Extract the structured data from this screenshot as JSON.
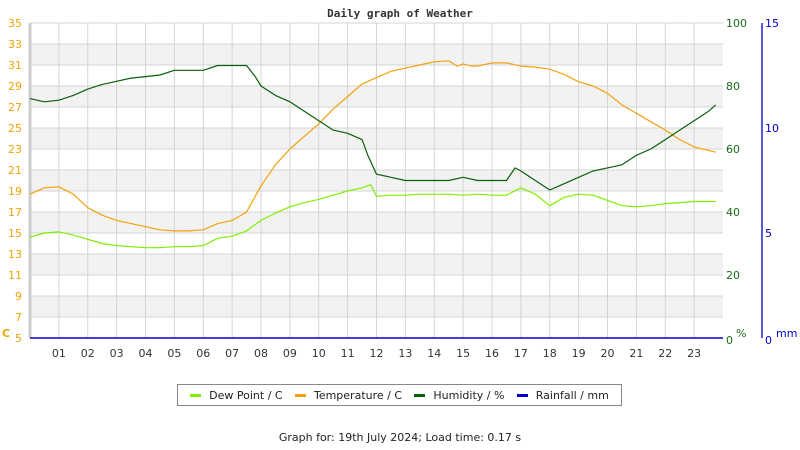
{
  "chart_data": {
    "type": "line",
    "title": "Daily graph of Weather",
    "xlabel": "",
    "x_ticks": [
      "01",
      "02",
      "03",
      "04",
      "05",
      "06",
      "07",
      "08",
      "09",
      "10",
      "11",
      "12",
      "13",
      "14",
      "15",
      "16",
      "17",
      "18",
      "19",
      "20",
      "21",
      "22",
      "23"
    ],
    "x_range": [
      0,
      24
    ],
    "axes": {
      "left": {
        "label": "C",
        "ylim": [
          5,
          35
        ],
        "ticks": [
          5,
          7,
          9,
          11,
          13,
          15,
          17,
          19,
          21,
          23,
          25,
          27,
          29,
          31,
          33,
          35
        ],
        "color": "#f0a30a"
      },
      "right": {
        "label": "%",
        "ylim": [
          0,
          100
        ],
        "ticks": [
          0,
          20,
          40,
          60,
          80,
          100
        ],
        "color": "#1a6b1a"
      },
      "rain": {
        "label": "mm",
        "ylim": [
          0,
          15
        ],
        "ticks": [
          0,
          5,
          10,
          15
        ],
        "color": "#0000cc"
      }
    },
    "grid": true,
    "legend_position": "bottom",
    "series": [
      {
        "name": "Dew Point / C",
        "axis": "left",
        "color": "#80ee00",
        "x": [
          0,
          0.5,
          1,
          1.5,
          2,
          2.5,
          3,
          3.5,
          4,
          4.5,
          5,
          5.5,
          6,
          6.5,
          7,
          7.5,
          8,
          8.5,
          9,
          9.5,
          10,
          10.5,
          11,
          11.5,
          11.8,
          12,
          12.5,
          13,
          13.5,
          14,
          14.5,
          15,
          15.5,
          16,
          16.5,
          17,
          17.5,
          18,
          18.5,
          19,
          19.5,
          20,
          20.5,
          21,
          21.5,
          22,
          22.5,
          23,
          23.75
        ],
        "values": [
          14.6,
          15.0,
          15.1,
          14.8,
          14.4,
          14.0,
          13.8,
          13.7,
          13.6,
          13.6,
          13.7,
          13.7,
          13.8,
          14.5,
          14.7,
          15.2,
          16.2,
          16.9,
          17.5,
          17.9,
          18.2,
          18.6,
          19.0,
          19.3,
          19.6,
          18.5,
          18.6,
          18.6,
          18.7,
          18.7,
          18.7,
          18.6,
          18.7,
          18.6,
          18.6,
          19.3,
          18.7,
          17.6,
          18.4,
          18.7,
          18.6,
          18.1,
          17.6,
          17.5,
          17.6,
          17.8,
          17.9,
          18.0,
          18.0
        ]
      },
      {
        "name": "Temperature / C",
        "axis": "left",
        "color": "#f5a00f",
        "x": [
          0,
          0.5,
          1,
          1.5,
          2,
          2.5,
          3,
          3.5,
          4,
          4.5,
          5,
          5.5,
          6,
          6.5,
          7,
          7.5,
          8,
          8.5,
          9,
          9.5,
          10,
          10.5,
          11,
          11.5,
          12,
          12.5,
          13,
          13.5,
          14,
          14.5,
          14.8,
          15,
          15.3,
          15.5,
          16,
          16.5,
          17,
          17.5,
          18,
          18.5,
          19,
          19.5,
          20,
          20.5,
          21,
          21.5,
          22,
          22.5,
          23,
          23.75
        ],
        "values": [
          18.7,
          19.3,
          19.4,
          18.7,
          17.4,
          16.7,
          16.2,
          15.9,
          15.6,
          15.3,
          15.2,
          15.2,
          15.3,
          15.9,
          16.2,
          17.0,
          19.5,
          21.5,
          23.0,
          24.2,
          25.4,
          26.8,
          28.0,
          29.2,
          29.8,
          30.4,
          30.7,
          31.0,
          31.3,
          31.4,
          30.9,
          31.1,
          30.9,
          30.9,
          31.2,
          31.2,
          30.9,
          30.8,
          30.6,
          30.1,
          29.4,
          29.0,
          28.3,
          27.2,
          26.4,
          25.6,
          24.8,
          23.9,
          23.2,
          22.7
        ]
      },
      {
        "name": "Humidity / %",
        "axis": "right",
        "color": "#0a5f0a",
        "x": [
          0,
          0.5,
          1,
          1.5,
          2,
          2.5,
          3,
          3.5,
          4,
          4.5,
          5,
          5.5,
          6,
          6.5,
          7,
          7.5,
          7.8,
          8,
          8.5,
          9,
          9.5,
          10,
          10.5,
          11,
          11.5,
          11.7,
          12,
          12.5,
          13,
          13.5,
          14,
          14.5,
          15,
          15.5,
          16,
          16.5,
          16.8,
          17,
          17.5,
          18,
          18.5,
          19,
          19.5,
          20,
          20.5,
          21,
          21.5,
          22,
          22.5,
          23,
          23.5,
          23.75
        ],
        "values": [
          76,
          75,
          75.5,
          77,
          79,
          80.5,
          81.5,
          82.5,
          83,
          83.5,
          85,
          85,
          85,
          86.5,
          86.5,
          86.5,
          83,
          80,
          77,
          75,
          72,
          69,
          66,
          65,
          63,
          58,
          52,
          51,
          50,
          50,
          50,
          50,
          51,
          50,
          50,
          50,
          54,
          53,
          50,
          47,
          49,
          51,
          53,
          54,
          55,
          58,
          60,
          63,
          66,
          69,
          72,
          74
        ]
      },
      {
        "name": "Rainfall / mm",
        "axis": "rain",
        "color": "#0000cc",
        "x": [
          0,
          24
        ],
        "values": [
          0,
          0
        ]
      }
    ]
  },
  "legend": {
    "items": [
      {
        "label": "Dew Point / C",
        "color": "#80ee00"
      },
      {
        "label": "Temperature / C",
        "color": "#f5a00f"
      },
      {
        "label": "Humidity / %",
        "color": "#0a5f0a"
      },
      {
        "label": "Rainfall / mm",
        "color": "#0000cc"
      }
    ]
  },
  "footer": {
    "text": "Graph for: 19th July 2024; Load time: 0.17 s"
  }
}
